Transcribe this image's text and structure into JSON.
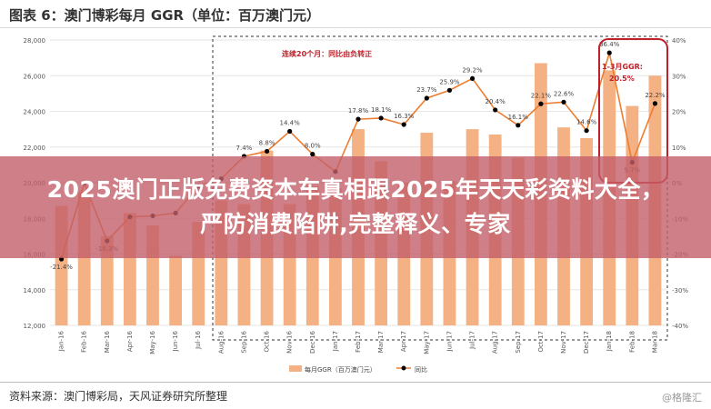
{
  "header": {
    "title": "图表 6：澳门博彩每月 GGR（单位：百万澳门元）"
  },
  "footer": {
    "source": "资料来源：澳门博彩局，天风证券研究所整理",
    "watermark": "@格隆汇"
  },
  "banner": {
    "text": "2025澳门正版免费资本车真相跟2025年天天彩资料大全，严防消费陷阱,完整释义、专家"
  },
  "colors": {
    "bar": "#f4b183",
    "line": "#ed7d31",
    "marker": "#000000",
    "annotation": "#c0202a",
    "banner": "#c35f69"
  },
  "chart_data": {
    "type": "bar+line",
    "categories": [
      "Jan-16",
      "Feb-16",
      "Mar-16",
      "Apr-16",
      "May-16",
      "Jun-16",
      "Jul-16",
      "Aug-16",
      "Sep-16",
      "Oct-16",
      "Nov-16",
      "Dec-16",
      "Jan-17",
      "Feb-17",
      "Mar-17",
      "Apr-17",
      "May-17",
      "Jun-17",
      "Jul-17",
      "Aug-17",
      "Sep-17",
      "Oct-17",
      "Nov-17",
      "Dec-17",
      "Jan-18",
      "Feb-18",
      "Mar-18"
    ],
    "series": [
      {
        "name": "每月GGR（百万澳门元）",
        "type": "bar",
        "axis": "left",
        "values": [
          18700,
          19500,
          17000,
          18300,
          17600,
          15900,
          17800,
          19000,
          18800,
          21800,
          18800,
          19800,
          19700,
          23000,
          21200,
          20000,
          22800,
          20100,
          23000,
          22700,
          21400,
          26700,
          23100,
          22500,
          26300,
          24300,
          26000
        ]
      },
      {
        "name": "同比",
        "type": "line",
        "axis": "right",
        "values": [
          -21.4,
          -0.1,
          -16.3,
          -9.6,
          -9.3,
          -8.5,
          -1.0,
          1.1,
          7.4,
          8.8,
          14.4,
          8.0,
          3.1,
          17.8,
          18.1,
          16.3,
          23.7,
          25.9,
          29.2,
          20.4,
          16.1,
          22.1,
          22.6,
          14.6,
          36.4,
          5.7,
          22.2
        ],
        "labels": [
          "-21.4%",
          "",
          "-16.3%",
          "",
          "",
          "",
          "",
          "",
          "7.4%",
          "8.8%",
          "14.4%",
          "8.0%",
          "",
          "17.8%",
          "18.1%",
          "16.3%",
          "23.7%",
          "25.9%",
          "29.2%",
          "20.4%",
          "16.1%",
          "22.1%",
          "22.6%",
          "14.6%",
          "36.4%",
          "5.7%",
          "22.2%"
        ]
      }
    ],
    "y_left": {
      "min": 12000,
      "max": 28000,
      "ticks": [
        "12,000",
        "14,000",
        "16,000",
        "18,000",
        "20,000",
        "22,000",
        "24,000",
        "26,000",
        "28,000"
      ]
    },
    "y_right": {
      "min": -40,
      "max": 40,
      "ticks": [
        "-40%",
        "-30%",
        "-20%",
        "-10%",
        "0%",
        "10%",
        "20%",
        "30%",
        "40%"
      ]
    },
    "legend": [
      "每月GGR（百万澳门元）",
      "同比"
    ],
    "annotations": {
      "streak": "连续20个月：同比由负转正",
      "ytd_line1": "1-3月GGR:",
      "ytd_line2": "20.5%"
    }
  }
}
